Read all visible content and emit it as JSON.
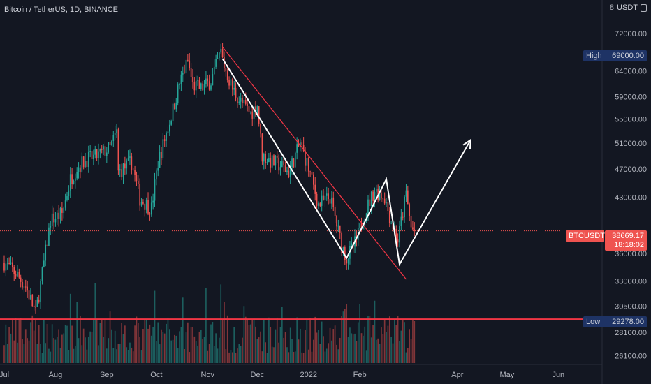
{
  "header": {
    "title": "Bitcoin / TetherUS, 1D, BINANCE",
    "unit_left": "8",
    "unit": "USDT"
  },
  "colors": {
    "background": "#131722",
    "up": "#26a69a",
    "down": "#ef5350",
    "line_red": "#f23645",
    "white": "#ffffff",
    "text": "#b2b5be",
    "tag_navy": "#1e3365"
  },
  "tags": {
    "high_label": "High",
    "high_value": "69000.00",
    "low_label": "Low",
    "low_value": "29278.00",
    "symbol": "BTCUSDT",
    "last_price": "38669.17",
    "countdown": "18:18:02"
  },
  "chart_data": {
    "type": "candlestick",
    "title": "Bitcoin / TetherUS, 1D, BINANCE",
    "y_scale": "log",
    "ylim": [
      25500,
      80000
    ],
    "y_ticks": [
      "72000.00",
      "64000.00",
      "59000.00",
      "55000.00",
      "51000.00",
      "47000.00",
      "43000.00",
      "36000.00",
      "33000.00",
      "30500.00",
      "28100.00",
      "26100.00"
    ],
    "x_ticks": [
      "Jul",
      "Aug",
      "Sep",
      "Oct",
      "Nov",
      "Dec",
      "2022",
      "Feb",
      "Apr",
      "May",
      "Jun"
    ],
    "x_range": [
      "2021-07-01",
      "2022-06-30"
    ],
    "price_path": [
      [
        "2021-07-01",
        35000
      ],
      [
        "2021-07-08",
        33800
      ],
      [
        "2021-07-14",
        32500
      ],
      [
        "2021-07-20",
        29800
      ],
      [
        "2021-07-24",
        33800
      ],
      [
        "2021-07-29",
        40000
      ],
      [
        "2021-08-05",
        40800
      ],
      [
        "2021-08-10",
        45500
      ],
      [
        "2021-08-14",
        47200
      ],
      [
        "2021-08-20",
        48500
      ],
      [
        "2021-08-25",
        48800
      ],
      [
        "2021-09-03",
        50200
      ],
      [
        "2021-09-07",
        52700
      ],
      [
        "2021-09-08",
        46500
      ],
      [
        "2021-09-16",
        48000
      ],
      [
        "2021-09-21",
        42800
      ],
      [
        "2021-09-28",
        41500
      ],
      [
        "2021-10-02",
        48000
      ],
      [
        "2021-10-10",
        55500
      ],
      [
        "2021-10-15",
        61500
      ],
      [
        "2021-10-20",
        66000
      ],
      [
        "2021-10-23",
        61200
      ],
      [
        "2021-10-28",
        60500
      ],
      [
        "2021-11-03",
        62000
      ],
      [
        "2021-11-09",
        68000
      ],
      [
        "2021-11-11",
        65000
      ],
      [
        "2021-11-16",
        60500
      ],
      [
        "2021-11-21",
        58000
      ],
      [
        "2021-11-27",
        56000
      ],
      [
        "2021-12-01",
        57500
      ],
      [
        "2021-12-04",
        49000
      ],
      [
        "2021-12-10",
        48000
      ],
      [
        "2021-12-15",
        47500
      ],
      [
        "2021-12-20",
        46500
      ],
      [
        "2021-12-27",
        51000
      ],
      [
        "2022-01-01",
        47000
      ],
      [
        "2022-01-07",
        42000
      ],
      [
        "2022-01-14",
        43000
      ],
      [
        "2022-01-21",
        37000
      ],
      [
        "2022-01-24",
        35500
      ],
      [
        "2022-01-30",
        37500
      ],
      [
        "2022-02-04",
        41000
      ],
      [
        "2022-02-10",
        44000
      ],
      [
        "2022-02-16",
        43000
      ],
      [
        "2022-02-19",
        40500
      ],
      [
        "2022-02-24",
        37500
      ],
      [
        "2022-03-01",
        43500
      ],
      [
        "2022-03-04",
        39000
      ],
      [
        "2022-03-06",
        38669
      ]
    ],
    "volume_scale_max": 100,
    "horizontal_lines": [
      {
        "price": 38669.17,
        "style": "dotted",
        "color": "#ef5350"
      },
      {
        "price": 29278,
        "style": "solid",
        "color": "#f23645"
      }
    ],
    "trend_lines": [
      {
        "from": [
          "2021-11-10",
          69000
        ],
        "to": [
          "2022-03-01",
          33200
        ],
        "color": "#f23645"
      }
    ],
    "projection_path": [
      [
        "2021-11-10",
        66500
      ],
      [
        "2022-01-24",
        35500
      ],
      [
        "2022-02-17",
        45500
      ],
      [
        "2022-02-25",
        34800
      ],
      [
        "2022-04-09",
        51500
      ]
    ],
    "high": 69000,
    "low": 29278,
    "last": 38669.17
  }
}
